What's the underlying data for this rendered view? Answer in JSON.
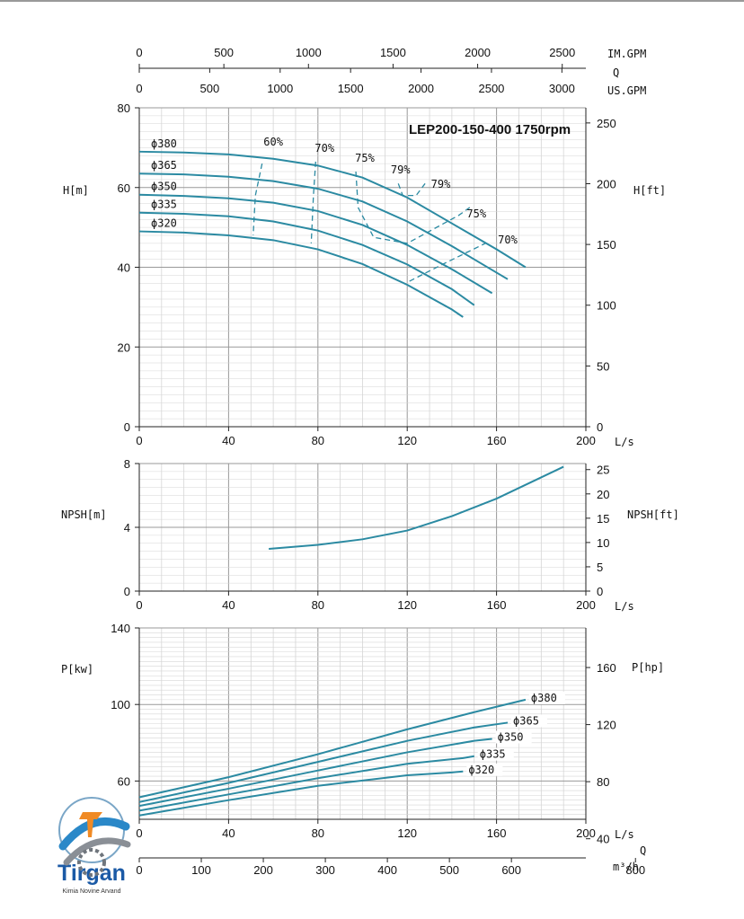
{
  "title": "LEP200-150-400 1750rpm",
  "flow_axes": {
    "imp_label": "IM.GPM",
    "q_label": "Q",
    "us_label": "US.GPM",
    "imp_ticks": [
      "0",
      "500",
      "1000",
      "1500",
      "2000",
      "2500"
    ],
    "us_ticks": [
      "0",
      "500",
      "1000",
      "1500",
      "2000",
      "2500",
      "3000"
    ],
    "ls_label": "L/s",
    "m3h_label": "m³/h",
    "m3h_q_label": "Q",
    "m3h_ticks": [
      "0",
      "100",
      "200",
      "300",
      "400",
      "500",
      "600",
      "800"
    ]
  },
  "logo": {
    "brand": "Tirgan",
    "tagline": "Kimia Novine Arvand"
  },
  "chart_data": [
    {
      "type": "line",
      "name": "head",
      "ylabel": "H[m]",
      "ylabel_right": "H[ft]",
      "xlabel": "L/s",
      "xlim": [
        0,
        200
      ],
      "ylim": [
        0,
        80
      ],
      "xticks": [
        0,
        40,
        80,
        120,
        160,
        200
      ],
      "yticks": [
        0,
        20,
        40,
        60,
        80
      ],
      "right_ticks_ft": [
        0,
        50,
        100,
        150,
        200,
        250
      ],
      "grid": true,
      "series": [
        {
          "name": "ϕ380",
          "x": [
            0,
            20,
            40,
            60,
            80,
            100,
            120,
            140,
            160,
            173
          ],
          "y": [
            69,
            68.8,
            68.3,
            67.2,
            65.5,
            62.5,
            57.5,
            51,
            44.5,
            40
          ]
        },
        {
          "name": "ϕ365",
          "x": [
            0,
            20,
            40,
            60,
            80,
            100,
            120,
            140,
            165
          ],
          "y": [
            63.5,
            63.3,
            62.7,
            61.6,
            59.7,
            56.5,
            51.5,
            45.3,
            37
          ]
        },
        {
          "name": "ϕ350",
          "x": [
            0,
            20,
            40,
            60,
            80,
            100,
            120,
            140,
            158
          ],
          "y": [
            58.2,
            57.9,
            57.3,
            56.2,
            54.1,
            50.6,
            45.6,
            39.5,
            33.5
          ]
        },
        {
          "name": "ϕ335",
          "x": [
            0,
            20,
            40,
            60,
            80,
            100,
            120,
            140,
            150
          ],
          "y": [
            53.7,
            53.4,
            52.8,
            51.5,
            49.2,
            45.6,
            40.7,
            34.5,
            30.5
          ]
        },
        {
          "name": "ϕ320",
          "x": [
            0,
            20,
            40,
            60,
            80,
            100,
            120,
            140,
            145
          ],
          "y": [
            49,
            48.7,
            48,
            46.8,
            44.5,
            40.8,
            35.6,
            29.4,
            27.5
          ]
        }
      ],
      "efficiency_contours": [
        {
          "label": "60%",
          "points": [
            [
              55,
              66
            ],
            [
              52,
              58
            ],
            [
              51,
              48
            ]
          ]
        },
        {
          "label": "70%",
          "points": [
            [
              79,
              66.5
            ],
            [
              78,
              58
            ],
            [
              77,
              46
            ]
          ]
        },
        {
          "label": "75%",
          "points": [
            [
              97,
              64
            ],
            [
              98,
              55
            ],
            [
              105,
              47.5
            ],
            [
              120,
              46
            ],
            [
              143,
              53
            ],
            [
              148,
              55
            ]
          ]
        },
        {
          "label": "79%",
          "points": [
            [
              116,
              61
            ],
            [
              118,
              58
            ],
            [
              124,
              58
            ],
            [
              128,
              61
            ]
          ]
        },
        {
          "label": "70%",
          "points": [
            [
              121,
              36.5
            ],
            [
              135,
              40.5
            ],
            [
              155,
              46
            ]
          ]
        }
      ],
      "efficiency_labels": [
        {
          "text": "60%",
          "x": 60,
          "y": 70.5
        },
        {
          "text": "70%",
          "x": 83,
          "y": 69
        },
        {
          "text": "75%",
          "x": 101,
          "y": 66.5
        },
        {
          "text": "79%",
          "x": 117,
          "y": 63.5
        },
        {
          "text": "79%",
          "x": 135,
          "y": 60
        },
        {
          "text": "75%",
          "x": 151,
          "y": 52.5
        },
        {
          "text": "70%",
          "x": 165,
          "y": 46
        }
      ]
    },
    {
      "type": "line",
      "name": "npsh",
      "ylabel": "NPSH[m]",
      "ylabel_right": "NPSH[ft]",
      "xlabel": "L/s",
      "xlim": [
        0,
        200
      ],
      "ylim": [
        0,
        8
      ],
      "xticks": [
        0,
        40,
        80,
        120,
        160,
        200
      ],
      "yticks": [
        0,
        4,
        8
      ],
      "right_ticks_ft": [
        0,
        5,
        10,
        15,
        20,
        25
      ],
      "grid": true,
      "series": [
        {
          "name": "NPSH",
          "x": [
            58,
            80,
            100,
            120,
            140,
            160,
            175,
            190
          ],
          "y": [
            2.65,
            2.9,
            3.25,
            3.8,
            4.7,
            5.8,
            6.8,
            7.8
          ]
        }
      ]
    },
    {
      "type": "line",
      "name": "power",
      "ylabel": "P[kw]",
      "ylabel_right": "P[hp]",
      "xlabel": "L/s",
      "xlim": [
        0,
        200
      ],
      "ylim": [
        40,
        140
      ],
      "xticks": [
        0,
        40,
        80,
        120,
        160,
        200
      ],
      "yticks": [
        60,
        100,
        140
      ],
      "right_ticks_hp": [
        40,
        80,
        120,
        160
      ],
      "grid": true,
      "series": [
        {
          "name": "ϕ380",
          "x": [
            0,
            40,
            80,
            120,
            150,
            173
          ],
          "y": [
            51.5,
            62,
            74,
            87,
            96,
            102.5
          ]
        },
        {
          "name": "ϕ365",
          "x": [
            0,
            40,
            80,
            120,
            150,
            165
          ],
          "y": [
            49,
            59,
            70,
            81,
            88,
            90.5
          ]
        },
        {
          "name": "ϕ350",
          "x": [
            0,
            40,
            80,
            120,
            150,
            158
          ],
          "y": [
            47,
            56,
            65.5,
            75,
            81,
            82
          ]
        },
        {
          "name": "ϕ335",
          "x": [
            0,
            40,
            80,
            120,
            145,
            150
          ],
          "y": [
            44.5,
            53,
            61.5,
            69,
            72,
            73
          ]
        },
        {
          "name": "ϕ320",
          "x": [
            0,
            40,
            80,
            120,
            140,
            145
          ],
          "y": [
            42,
            50,
            57.5,
            63,
            64.5,
            65
          ]
        }
      ]
    }
  ]
}
